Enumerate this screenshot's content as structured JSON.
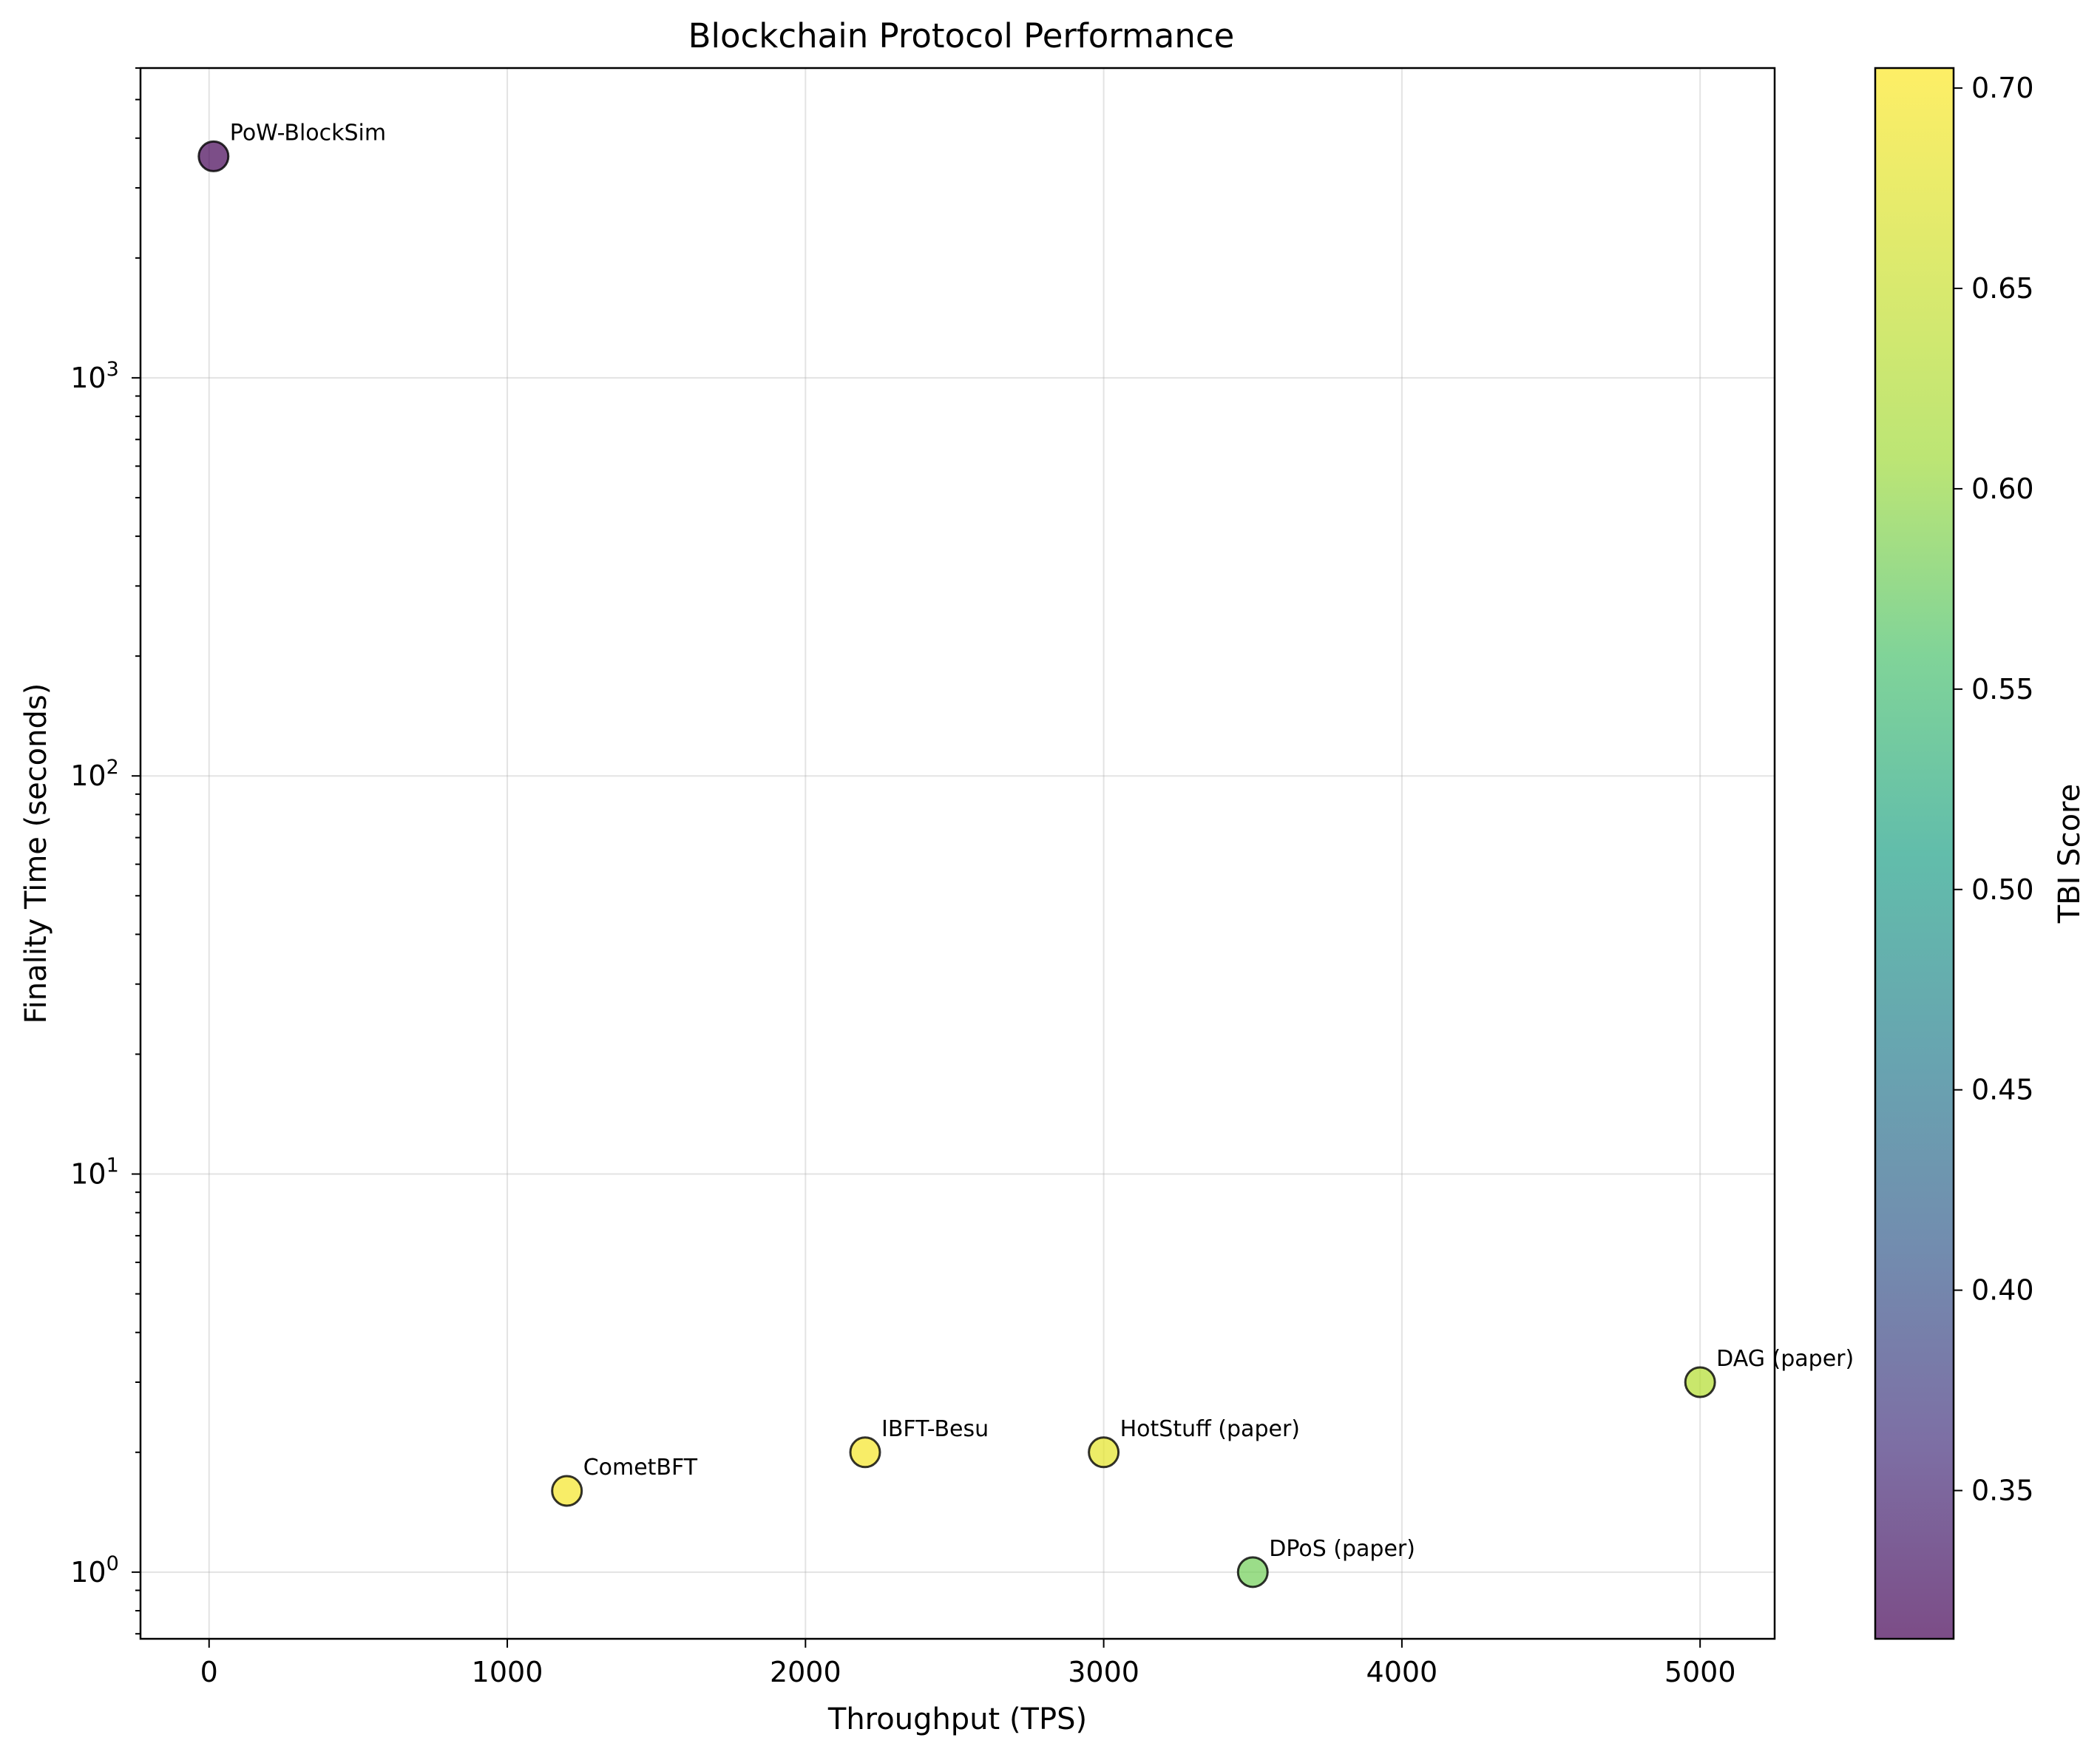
{
  "chart_data": {
    "type": "scatter",
    "title": "Blockchain Protocol Performance",
    "xlabel": "Throughput (TPS)",
    "ylabel": "Finality Time (seconds)",
    "xlim": [
      -230,
      5250
    ],
    "ylim": [
      0.68,
      6000
    ],
    "yscale": "log",
    "grid": true,
    "x_ticks": [
      0,
      1000,
      2000,
      3000,
      4000,
      5000
    ],
    "y_ticks": [
      1,
      10,
      100,
      1000
    ],
    "y_tick_labels": [
      {
        "base": "10",
        "exp": "0"
      },
      {
        "base": "10",
        "exp": "1"
      },
      {
        "base": "10",
        "exp": "2"
      },
      {
        "base": "10",
        "exp": "3"
      }
    ],
    "points": [
      {
        "label": "PoW-BlockSim",
        "x": 15,
        "y": 3600,
        "tbi": 0.315
      },
      {
        "label": "CometBFT",
        "x": 1200,
        "y": 1.6,
        "tbi": 0.7
      },
      {
        "label": "IBFT-Besu",
        "x": 2200,
        "y": 2.0,
        "tbi": 0.7
      },
      {
        "label": "HotStuff (paper)",
        "x": 3000,
        "y": 2.0,
        "tbi": 0.69
      },
      {
        "label": "DPoS (paper)",
        "x": 3500,
        "y": 1.0,
        "tbi": 0.62
      },
      {
        "label": "DAG (paper)",
        "x": 5000,
        "y": 3.0,
        "tbi": 0.66
      }
    ],
    "colorbar": {
      "label": "TBI Score",
      "min": 0.313,
      "max": 0.705,
      "ticks": [
        "0.35",
        "0.40",
        "0.45",
        "0.50",
        "0.55",
        "0.60",
        "0.65",
        "0.70"
      ],
      "colormap": "viridis",
      "alpha": 0.7
    }
  }
}
